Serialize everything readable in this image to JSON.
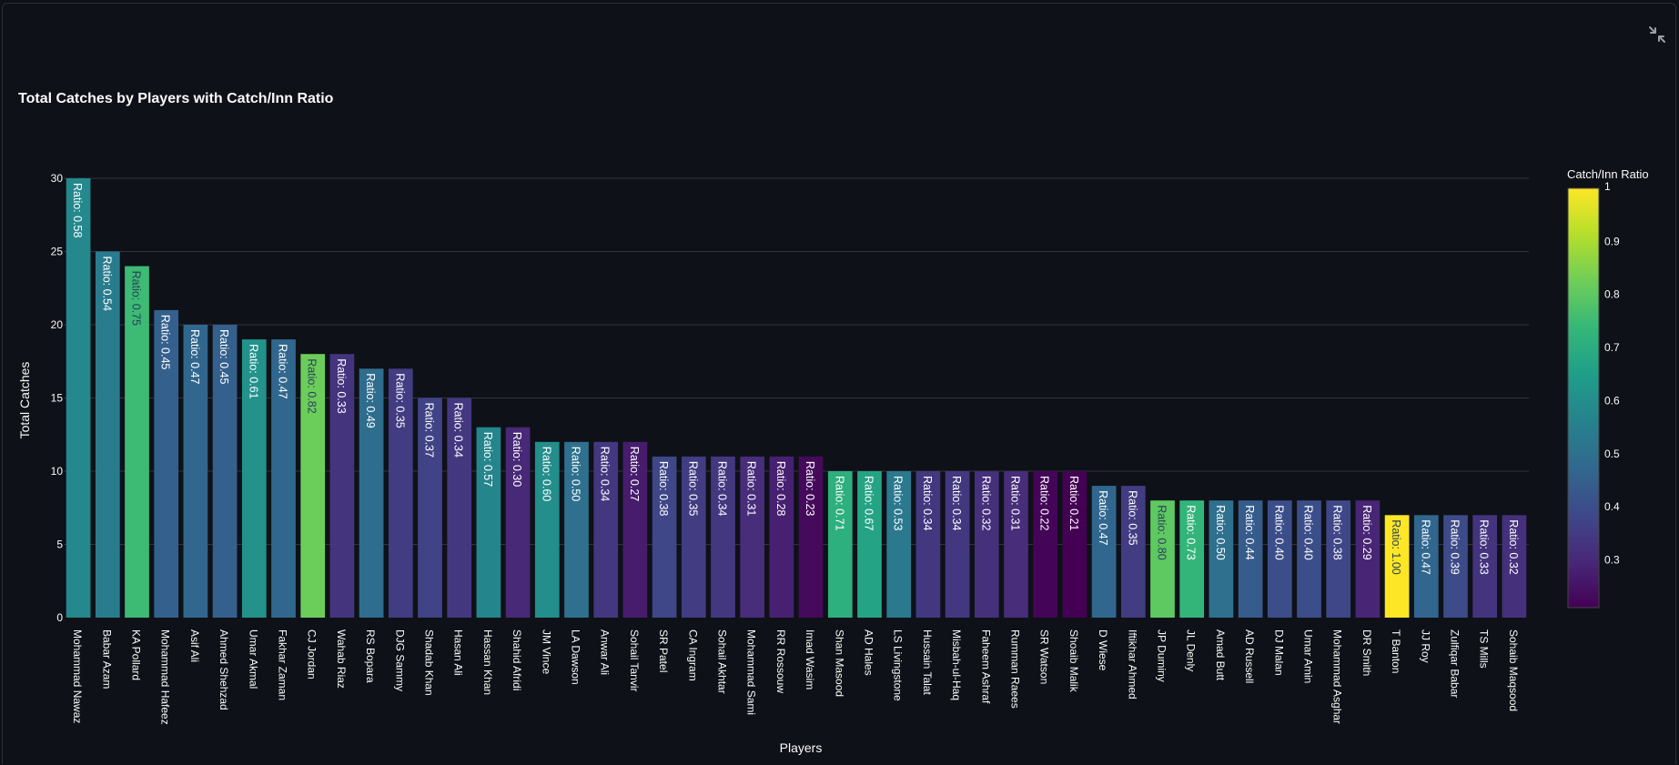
{
  "chart_data": {
    "type": "bar",
    "title": "Total Catches by Players with Catch/Inn Ratio",
    "xlabel": "Players",
    "ylabel": "Total Catches",
    "ylim": [
      0,
      30
    ],
    "yticks": [
      0,
      5,
      10,
      15,
      20,
      25,
      30
    ],
    "grid": true,
    "colorbar": {
      "title": "Catch/Inn Ratio",
      "range": [
        0.21,
        1.0
      ],
      "ticks": [
        "0.3",
        "0.4",
        "0.5",
        "0.6",
        "0.7",
        "0.8",
        "0.9",
        "1"
      ],
      "colorscale": "viridis"
    },
    "bar_label_prefix": "Ratio: ",
    "categories": [
      "Mohammad Nawaz",
      "Babar Azam",
      "KA Pollard",
      "Mohammad Hafeez",
      "Asif Ali",
      "Ahmed Shehzad",
      "Umar Akmal",
      "Fakhar Zaman",
      "CJ Jordan",
      "Wahab Riaz",
      "RS Bopara",
      "DJG Sammy",
      "Shadab Khan",
      "Hasan Ali",
      "Hassan Khan",
      "Shahid Afridi",
      "JM Vince",
      "LA Dawson",
      "Anwar Ali",
      "Sohail Tanvir",
      "SR Patel",
      "CA Ingram",
      "Sohail Akhtar",
      "Mohammad Sami",
      "RR Rossouw",
      "Imad Wasim",
      "Shan Masood",
      "AD Hales",
      "LS Livingstone",
      "Hussain Talat",
      "Misbah-ul-Haq",
      "Faheem Ashraf",
      "Rumman Raees",
      "SR Watson",
      "Shoaib Malik",
      "D Wiese",
      "Iftikhar Ahmed",
      "JP Duminy",
      "JL Denly",
      "Amad Butt",
      "AD Russell",
      "DJ Malan",
      "Umar Amin",
      "Mohammad Asghar",
      "DR Smith",
      "T Banton",
      "JJ Roy",
      "Zulfiqar Babar",
      "TS Mills",
      "Sohaib Maqsood"
    ],
    "values": [
      30,
      25,
      24,
      21,
      20,
      20,
      19,
      19,
      18,
      18,
      17,
      17,
      15,
      15,
      13,
      13,
      12,
      12,
      12,
      12,
      11,
      11,
      11,
      11,
      11,
      11,
      10,
      10,
      10,
      10,
      10,
      10,
      10,
      10,
      10,
      9,
      9,
      8,
      8,
      8,
      8,
      8,
      8,
      8,
      8,
      7,
      7,
      7,
      7,
      7
    ],
    "ratios": [
      "0.58",
      "0.54",
      "0.75",
      "0.45",
      "0.47",
      "0.45",
      "0.61",
      "0.47",
      "0.82",
      "0.33",
      "0.49",
      "0.35",
      "0.37",
      "0.34",
      "0.57",
      "0.30",
      "0.60",
      "0.50",
      "0.34",
      "0.27",
      "0.38",
      "0.35",
      "0.34",
      "0.31",
      "0.28",
      "0.23",
      "0.71",
      "0.67",
      "0.53",
      "0.34",
      "0.34",
      "0.32",
      "0.31",
      "0.22",
      "0.21",
      "0.47",
      "0.35",
      "0.80",
      "0.73",
      "0.50",
      "0.44",
      "0.40",
      "0.40",
      "0.38",
      "0.29",
      "1.00",
      "0.47",
      "0.39",
      "0.33",
      "0.32"
    ]
  }
}
